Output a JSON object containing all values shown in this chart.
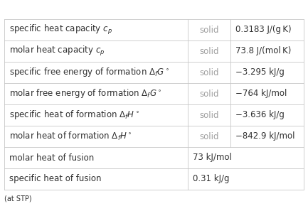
{
  "rows": [
    {
      "col1": "specific heat capacity $c_p$",
      "col2": "solid",
      "col3": "0.3183 J/(g K)",
      "span": false
    },
    {
      "col1": "molar heat capacity $c_p$",
      "col2": "solid",
      "col3": "73.8 J/(mol K)",
      "span": false
    },
    {
      "col1": "specific free energy of formation $\\Delta_f G^\\circ$",
      "col2": "solid",
      "col3": "−3.295 kJ/g",
      "span": false
    },
    {
      "col1": "molar free energy of formation $\\Delta_f G^\\circ$",
      "col2": "solid",
      "col3": "−764 kJ/mol",
      "span": false
    },
    {
      "col1": "specific heat of formation $\\Delta_f H^\\circ$",
      "col2": "solid",
      "col3": "−3.636 kJ/g",
      "span": false
    },
    {
      "col1": "molar heat of formation $\\Delta_f H^\\circ$",
      "col2": "solid",
      "col3": "−842.9 kJ/mol",
      "span": false
    },
    {
      "col1": "molar heat of fusion",
      "col2": "73 kJ/mol",
      "col3": "",
      "span": true
    },
    {
      "col1": "specific heat of fusion",
      "col2": "0.31 kJ/g",
      "col3": "",
      "span": true
    }
  ],
  "footnote": "(at STP)",
  "bg_color": "#ffffff",
  "line_color": "#c8c8c8",
  "text_color_dark": "#303030",
  "text_color_light": "#a0a0a0",
  "font_size_main": 8.5,
  "font_size_footnote": 7.0
}
